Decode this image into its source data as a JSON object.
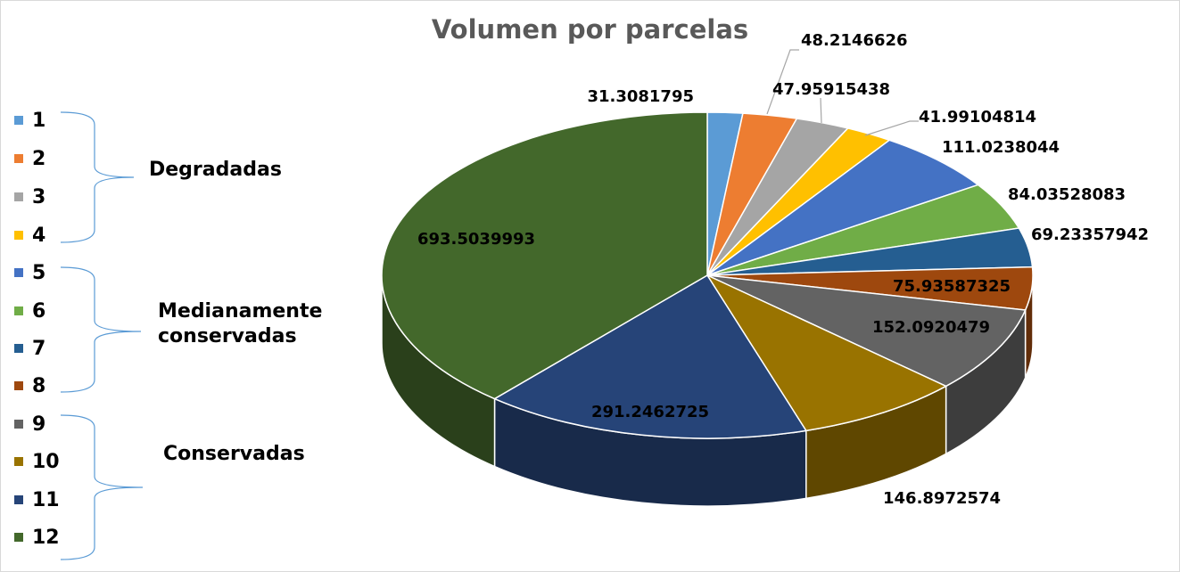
{
  "chart_data": {
    "type": "pie",
    "style": "3d",
    "title": "Volumen por parcelas",
    "categories": [
      "1",
      "2",
      "3",
      "4",
      "5",
      "6",
      "7",
      "8",
      "9",
      "10",
      "11",
      "12"
    ],
    "values": [
      31.3081795,
      48.2146626,
      47.95915438,
      41.99104814,
      111.0238044,
      84.03528083,
      69.23357942,
      75.93587325,
      152.0920479,
      146.8972574,
      291.2462725,
      693.5039993
    ],
    "data_labels": [
      "31.3081795",
      "48.2146626",
      "47.95915438",
      "41.99104814",
      "111.0238044",
      "84.03528083",
      "69.23357942",
      "75.93587325",
      "152.0920479",
      "146.8972574",
      "291.2462725",
      "693.5039993"
    ],
    "colors": [
      "#5b9bd5",
      "#ed7d31",
      "#a5a5a5",
      "#ffc000",
      "#4472c4",
      "#70ad47",
      "#255e91",
      "#9e480e",
      "#636363",
      "#997300",
      "#264478",
      "#43682b"
    ],
    "legend_position": "left",
    "groups": [
      {
        "label": "Degradadas",
        "members": [
          "1",
          "2",
          "3",
          "4"
        ]
      },
      {
        "label": "Medianamente conservadas",
        "members": [
          "5",
          "6",
          "7",
          "8"
        ]
      },
      {
        "label": "Conservadas",
        "members": [
          "9",
          "10",
          "11",
          "12"
        ]
      }
    ]
  }
}
